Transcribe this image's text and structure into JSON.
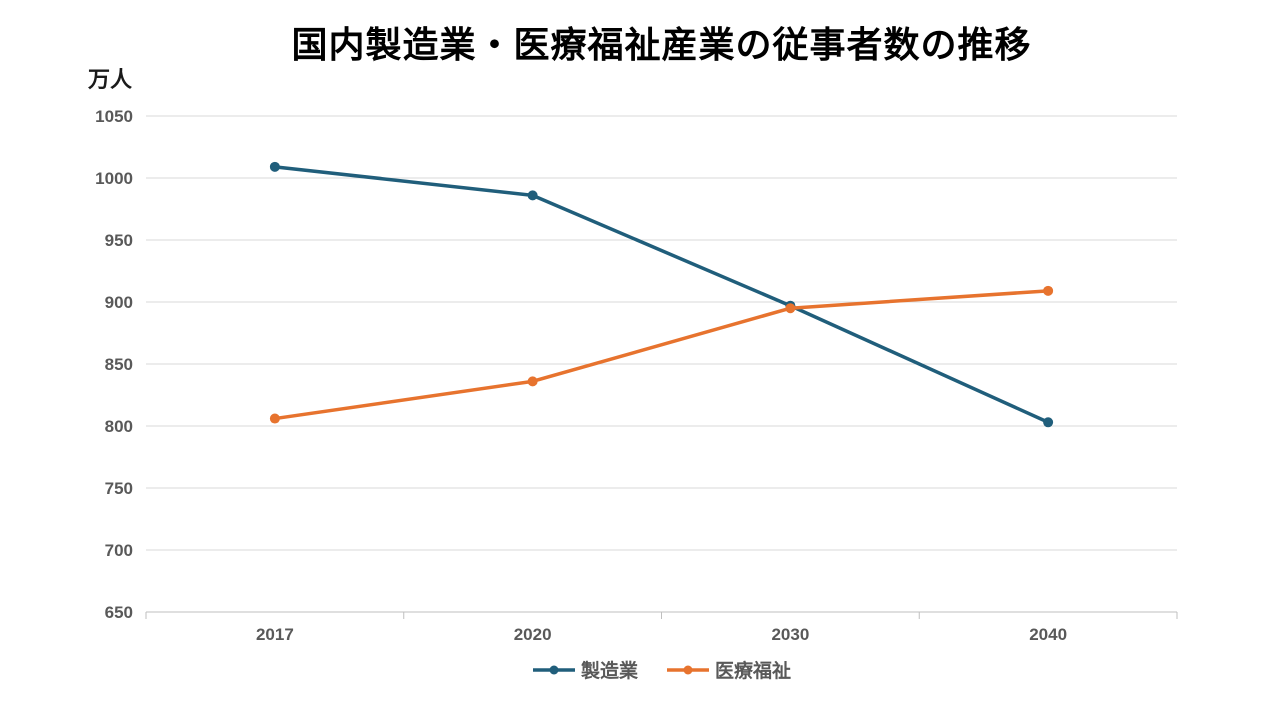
{
  "chart_data": {
    "type": "line",
    "title": "国内製造業・医療福祉産業の従事者数の推移",
    "unit_label": "万人",
    "xlabel": "",
    "ylabel": "万人",
    "categories": [
      "2017",
      "2020",
      "2030",
      "2040"
    ],
    "series": [
      {
        "key": "manufacturing",
        "name": "製造業",
        "color": "#205E7B",
        "values": [
          1009,
          986,
          897,
          803
        ]
      },
      {
        "key": "medical-welfare",
        "name": "医療福祉",
        "color": "#E7732E",
        "values": [
          806,
          836,
          895,
          909
        ]
      }
    ],
    "ylim": [
      650,
      1050
    ],
    "yticks": [
      650,
      700,
      750,
      800,
      850,
      900,
      950,
      1000,
      1050
    ],
    "grid": true,
    "legend_position": "bottom",
    "colors": {
      "grid": "#D9D9D9",
      "axis": "#BFBFBF",
      "tick_label": "#595959",
      "title": "#000000",
      "background": "#FFFFFF"
    }
  }
}
